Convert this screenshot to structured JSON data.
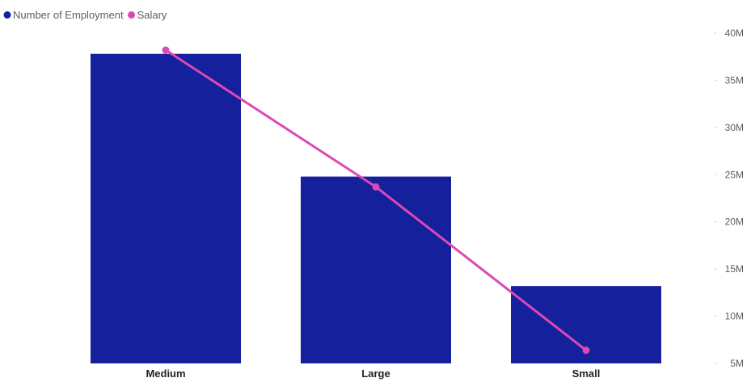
{
  "legend": {
    "items": [
      {
        "label": "Number of Employment",
        "color": "#14209c"
      },
      {
        "label": "Salary",
        "color": "#dc48b4"
      }
    ]
  },
  "chart_data": {
    "type": "bar",
    "combo": "bar-with-line",
    "legend_position": "top-left",
    "grid": false,
    "categories": [
      "Medium",
      "Large",
      "Small"
    ],
    "series": [
      {
        "name": "Number of Employment",
        "type": "bar",
        "color": "#14209c",
        "values": [
          37.8,
          24.8,
          13.2
        ]
      },
      {
        "name": "Salary",
        "type": "line",
        "color": "#dc48b4",
        "axis": "right",
        "values": [
          38.2,
          23.7,
          6.4
        ]
      }
    ],
    "y_axis": {
      "position": "right",
      "ylim": [
        5,
        40
      ],
      "ticks": [
        40,
        35,
        30,
        25,
        20,
        15,
        10,
        5
      ],
      "tick_labels": [
        "40M",
        "35M",
        "30M",
        "25M",
        "20M",
        "15M",
        "10M",
        "5M"
      ]
    }
  }
}
